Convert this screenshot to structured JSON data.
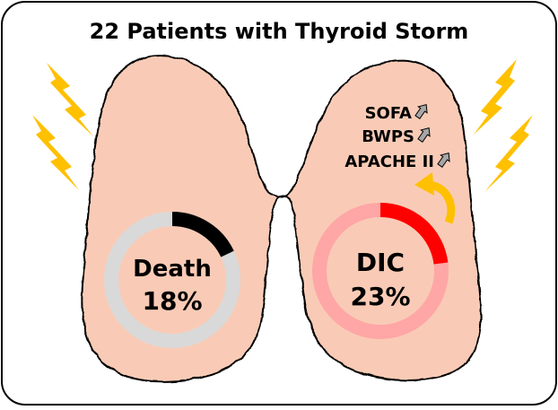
{
  "title": "22 Patients with Thyroid Storm",
  "left_lobe": {
    "label": "Death",
    "percent_text": "18%",
    "fraction": 0.18
  },
  "right_lobe": {
    "label": "DIC",
    "percent_text": "23%",
    "fraction": 0.23,
    "scores": [
      {
        "label": "SOFA",
        "trend_icon": "up-arrow-icon"
      },
      {
        "label": "BWPS",
        "trend_icon": "up-arrow-icon"
      },
      {
        "label": "APACHE II",
        "trend_icon": "up-arrow-icon"
      }
    ]
  },
  "colors": {
    "thyroid_fill": "#f9cbb6",
    "outline": "#000000",
    "lightning": "#ffc000",
    "death_track": "#d9d9d9",
    "death_arc": "#000000",
    "dic_track": "#ffa6a6",
    "dic_arc": "#ff0000",
    "curved_arrow": "#ffc000",
    "trend_arrow": "#a6a6a6"
  }
}
